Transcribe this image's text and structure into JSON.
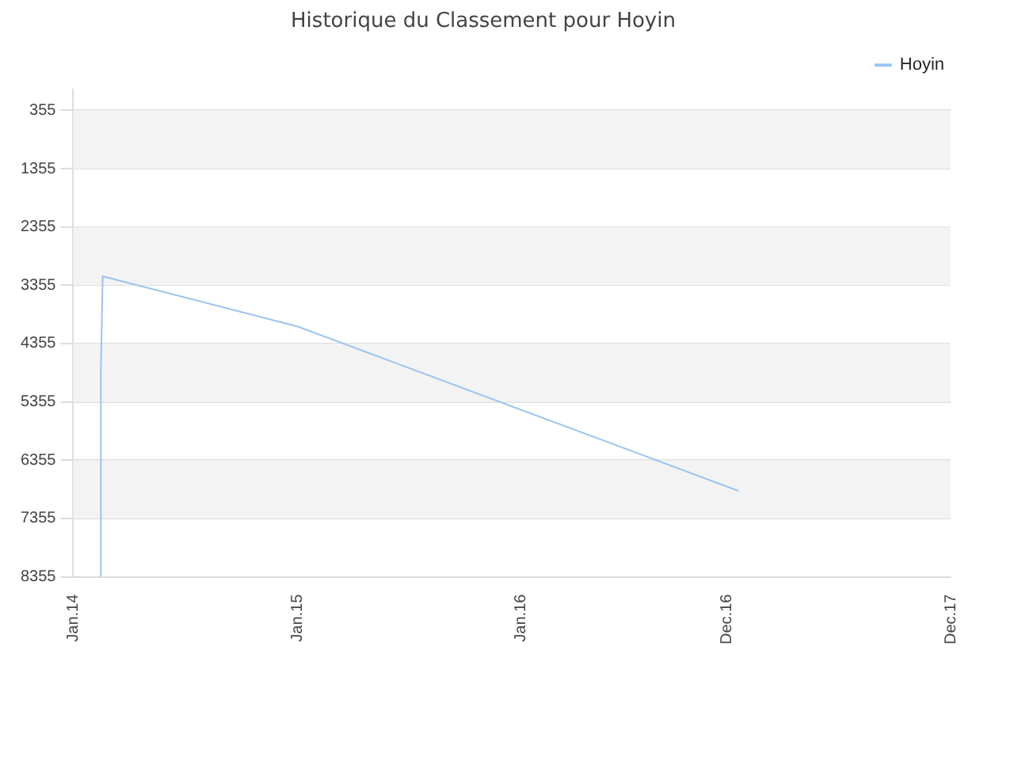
{
  "chart_data": {
    "type": "line",
    "title": "Historique du Classement pour Hoyin",
    "series": [
      {
        "name": "Hoyin",
        "color": "#99c4f0",
        "x": [
          "2014-02-15",
          "2014-02-15",
          "2014-02-18",
          "2015-01-01",
          "2016-12-20"
        ],
        "values": [
          8355,
          4800,
          3200,
          4060,
          6880
        ]
      }
    ],
    "xlim": [
      "2014-01",
      "2017-12"
    ],
    "xticks": [
      {
        "value": "2014-01",
        "label": "Jan.14"
      },
      {
        "value": "2015-01",
        "label": "Jan.15"
      },
      {
        "value": "2016-01",
        "label": "Jan.16"
      },
      {
        "value": "2016-12",
        "label": "Dec.16"
      },
      {
        "value": "2017-12",
        "label": "Dec.17"
      }
    ],
    "ylim": [
      8355,
      0
    ],
    "yticks": [
      355,
      1355,
      2355,
      3355,
      4355,
      5355,
      6355,
      7355,
      8355
    ],
    "grid": "y",
    "legend": "top right",
    "marker": "none",
    "line_style": "solid"
  }
}
